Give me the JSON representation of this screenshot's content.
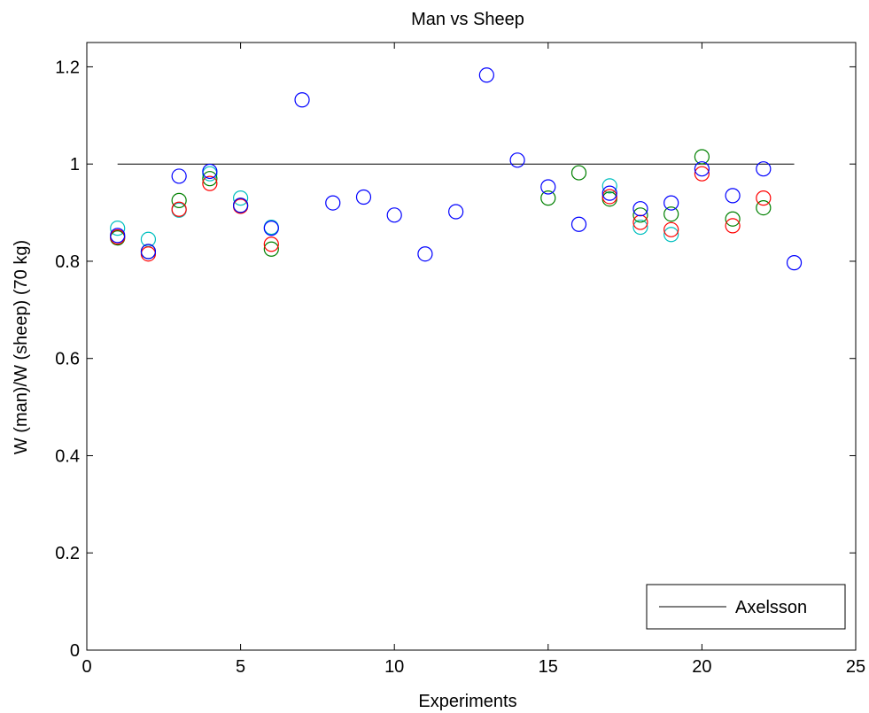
{
  "chart_data": {
    "type": "scatter",
    "title": "Man vs Sheep",
    "xlabel": "Experiments",
    "ylabel": "W (man)/W (sheep) (70 kg)",
    "xlim": [
      0,
      25
    ],
    "ylim": [
      0,
      1.25
    ],
    "xticks": [
      0,
      5,
      10,
      15,
      20,
      25
    ],
    "yticks": [
      0,
      0.2,
      0.4,
      0.6,
      0.8,
      1,
      1.2
    ],
    "xtick_labels": [
      "0",
      "5",
      "10",
      "15",
      "20",
      "25"
    ],
    "ytick_labels": [
      "0",
      "0.2",
      "0.4",
      "0.6",
      "0.8",
      "1",
      "1.2"
    ],
    "grid": false,
    "marker": "open-circle",
    "reference_line": {
      "name": "Axelsson",
      "x": [
        1,
        23
      ],
      "y": [
        1.0,
        1.0
      ],
      "color": "#000000"
    },
    "legend": {
      "position": "bottom-right",
      "entries": [
        "Axelsson"
      ]
    },
    "series": [
      {
        "color": "#00bfbf",
        "x": [
          1,
          2,
          3,
          4,
          5,
          6,
          17,
          18,
          19
        ],
        "y": [
          0.868,
          0.845,
          0.905,
          0.98,
          0.93,
          0.87,
          0.955,
          0.87,
          0.855
        ]
      },
      {
        "color": "#008000",
        "x": [
          1,
          2,
          3,
          4,
          5,
          6,
          15,
          16,
          17,
          18,
          19,
          20,
          21,
          22
        ],
        "y": [
          0.848,
          0.82,
          0.925,
          0.97,
          0.915,
          0.825,
          0.93,
          0.982,
          0.928,
          0.895,
          0.897,
          1.015,
          0.887,
          0.91
        ]
      },
      {
        "color": "#ff0000",
        "x": [
          1,
          2,
          3,
          4,
          5,
          6,
          17,
          18,
          19,
          20,
          21,
          22
        ],
        "y": [
          0.85,
          0.815,
          0.907,
          0.96,
          0.913,
          0.835,
          0.933,
          0.88,
          0.865,
          0.98,
          0.873,
          0.93
        ]
      },
      {
        "color": "#0000ff",
        "x": [
          1,
          2,
          3,
          4,
          5,
          6,
          7,
          8,
          9,
          10,
          11,
          12,
          13,
          14,
          15,
          16,
          17,
          18,
          19,
          20,
          21,
          22,
          23
        ],
        "y": [
          0.853,
          0.82,
          0.975,
          0.985,
          0.915,
          0.868,
          1.132,
          0.92,
          0.932,
          0.895,
          0.815,
          0.902,
          1.183,
          1.008,
          0.953,
          0.876,
          0.94,
          0.908,
          0.92,
          0.99,
          0.935,
          0.99,
          0.797
        ]
      }
    ]
  }
}
